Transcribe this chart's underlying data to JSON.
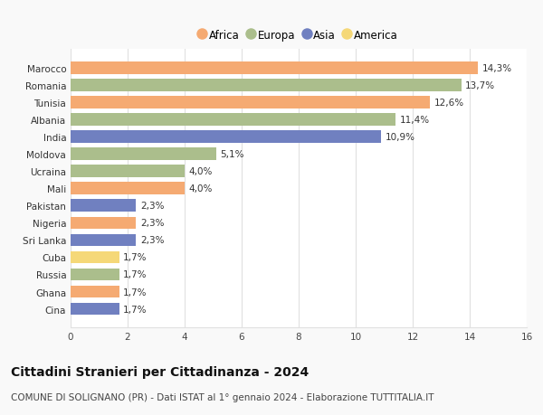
{
  "categories": [
    "Marocco",
    "Romania",
    "Tunisia",
    "Albania",
    "India",
    "Moldova",
    "Ucraina",
    "Mali",
    "Pakistan",
    "Nigeria",
    "Sri Lanka",
    "Cuba",
    "Russia",
    "Ghana",
    "Cina"
  ],
  "values": [
    14.3,
    13.7,
    12.6,
    11.4,
    10.9,
    5.1,
    4.0,
    4.0,
    2.3,
    2.3,
    2.3,
    1.7,
    1.7,
    1.7,
    1.7
  ],
  "labels": [
    "14,3%",
    "13,7%",
    "12,6%",
    "11,4%",
    "10,9%",
    "5,1%",
    "4,0%",
    "4,0%",
    "2,3%",
    "2,3%",
    "2,3%",
    "1,7%",
    "1,7%",
    "1,7%",
    "1,7%"
  ],
  "continents": [
    "Africa",
    "Europa",
    "Africa",
    "Europa",
    "Asia",
    "Europa",
    "Europa",
    "Africa",
    "Asia",
    "Africa",
    "Asia",
    "America",
    "Europa",
    "Africa",
    "Asia"
  ],
  "continent_colors": {
    "Africa": "#F5AA72",
    "Europa": "#ABBE8C",
    "Asia": "#7080C0",
    "America": "#F5D878"
  },
  "legend_order": [
    "Africa",
    "Europa",
    "Asia",
    "America"
  ],
  "title": "Cittadini Stranieri per Cittadinanza - 2024",
  "subtitle": "COMUNE DI SOLIGNANO (PR) - Dati ISTAT al 1° gennaio 2024 - Elaborazione TUTTITALIA.IT",
  "xlim": [
    0,
    16
  ],
  "xticks": [
    0,
    2,
    4,
    6,
    8,
    10,
    12,
    14,
    16
  ],
  "background_color": "#f9f9f9",
  "plot_background": "#ffffff",
  "grid_color": "#e0e0e0",
  "title_fontsize": 10,
  "subtitle_fontsize": 7.5,
  "label_fontsize": 7.5,
  "tick_fontsize": 7.5,
  "legend_fontsize": 8.5
}
